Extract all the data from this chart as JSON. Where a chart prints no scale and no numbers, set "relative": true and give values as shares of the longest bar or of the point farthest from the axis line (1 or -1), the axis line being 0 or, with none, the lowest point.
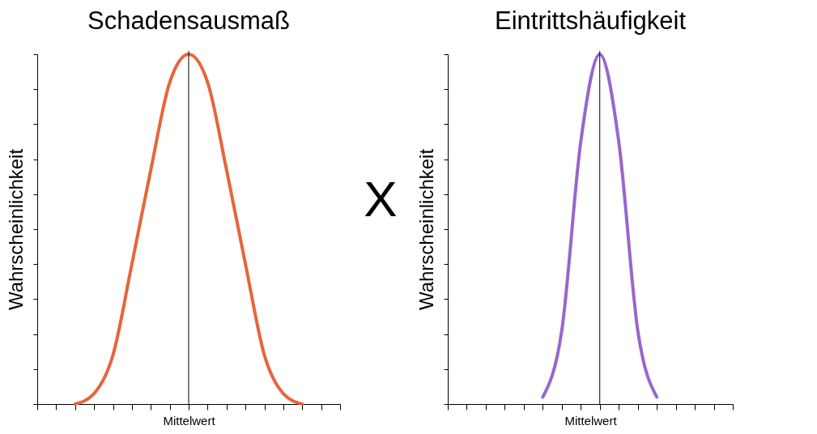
{
  "chart_data": [
    {
      "type": "line",
      "title": "Schadensausmaß",
      "xlabel": "Mittelwert",
      "ylabel": "Wahrscheinlichkeit",
      "relative": true,
      "categories": [
        null,
        null,
        null,
        null,
        null,
        null,
        null,
        null,
        null,
        null,
        null,
        null,
        null,
        null,
        null,
        null,
        null
      ],
      "series": [
        {
          "color": "#e8643c",
          "values": [
            null,
            null,
            0,
            0.03,
            0.14,
            0.4,
            0.67,
            0.92,
            1,
            0.92,
            0.67,
            0.4,
            0.14,
            0.03,
            0,
            null,
            null
          ]
        }
      ]
    },
    {
      "type": "other",
      "annotations": [
        "X"
      ]
    },
    {
      "type": "line",
      "title": "Eintrittshäufigkeit",
      "xlabel": "Mittelwert",
      "ylabel": "Wahrscheinlichkeit",
      "relative": true,
      "categories": [
        null,
        null,
        null,
        null,
        null,
        null,
        null,
        null,
        null,
        null,
        null,
        null,
        null,
        null,
        null,
        null
      ],
      "series": [
        {
          "color": "#9966cc",
          "values": [
            null,
            null,
            null,
            null,
            null,
            0.02,
            0.21,
            0.75,
            1,
            0.75,
            0.21,
            0.02,
            null,
            null,
            null,
            null
          ]
        }
      ]
    }
  ]
}
